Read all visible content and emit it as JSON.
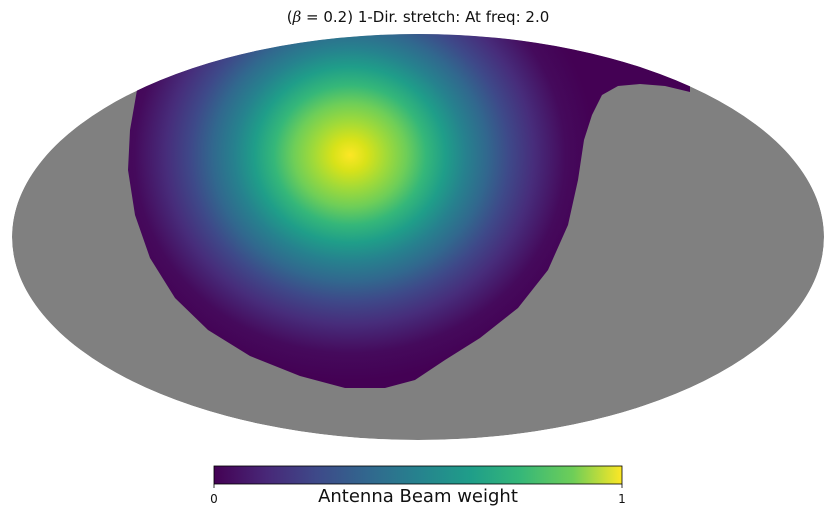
{
  "title": {
    "prefix": "(",
    "symbol": "β",
    "rest": " = 0.2) 1-Dir. stretch: At freq: 2.0"
  },
  "chart_data": {
    "type": "heatmap",
    "projection": "mollweide",
    "title": "(β = 0.2) 1-Dir. stretch: At freq: 2.0",
    "colormap": "viridis",
    "masked_color": "#808080",
    "colorbar": {
      "label": "Antenna Beam weight",
      "min": 0,
      "max": 1,
      "ticks": [
        "0",
        "1"
      ]
    },
    "beam_peak_weight": 1
  }
}
